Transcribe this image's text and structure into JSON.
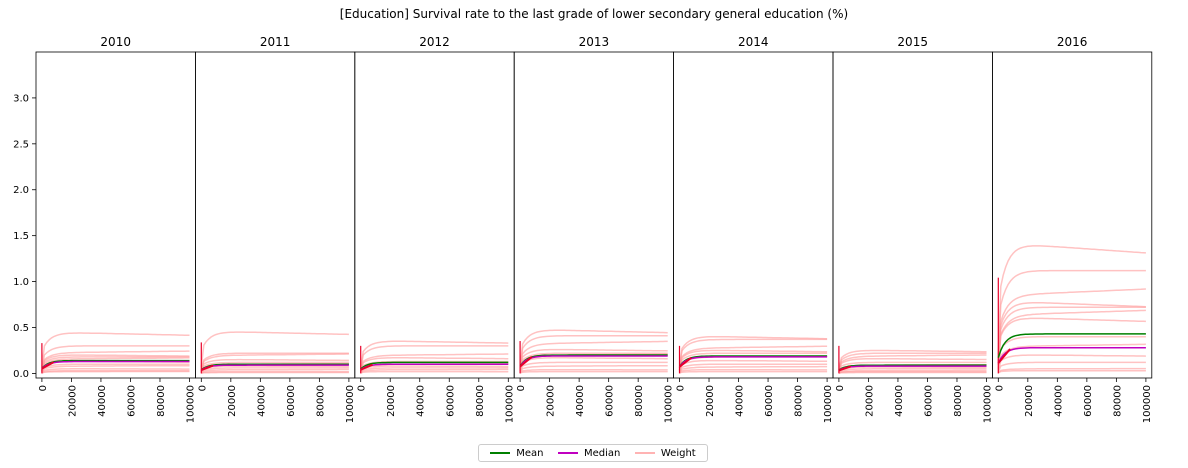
{
  "chart_data": {
    "type": "line",
    "title": "[Education] Survival rate to the last grade of lower secondary general education (%)",
    "panels": [
      {
        "title": "2010",
        "mean": 0.14,
        "median": 0.13,
        "weights": [
          0.44,
          0.3,
          0.23,
          0.2,
          0.18,
          0.16,
          0.13,
          0.1,
          0.08,
          0.05,
          0.03,
          0.02
        ]
      },
      {
        "title": "2011",
        "mean": 0.1,
        "median": 0.09,
        "weights": [
          0.45,
          0.22,
          0.2,
          0.15,
          0.12,
          0.1,
          0.08,
          0.06,
          0.04,
          0.02,
          0.01
        ]
      },
      {
        "title": "2012",
        "mean": 0.12,
        "median": 0.1,
        "weights": [
          0.35,
          0.3,
          0.2,
          0.17,
          0.13,
          0.1,
          0.08,
          0.06,
          0.04,
          0.02
        ]
      },
      {
        "title": "2013",
        "mean": 0.2,
        "median": 0.19,
        "weights": [
          0.47,
          0.41,
          0.33,
          0.26,
          0.22,
          0.2,
          0.17,
          0.12,
          0.08,
          0.04,
          0.02
        ]
      },
      {
        "title": "2014",
        "mean": 0.19,
        "median": 0.18,
        "weights": [
          0.4,
          0.37,
          0.28,
          0.25,
          0.22,
          0.18,
          0.14,
          0.1,
          0.07,
          0.04,
          0.02
        ]
      },
      {
        "title": "2015",
        "mean": 0.09,
        "median": 0.08,
        "weights": [
          0.25,
          0.22,
          0.19,
          0.16,
          0.12,
          0.09,
          0.07,
          0.05,
          0.03,
          0.02,
          0.01
        ]
      },
      {
        "title": "2016",
        "mean": 0.43,
        "median": 0.28,
        "weights": [
          1.39,
          1.12,
          0.87,
          0.77,
          0.72,
          0.65,
          0.6,
          0.4,
          0.3,
          0.2,
          0.12,
          0.05,
          0.03
        ]
      }
    ],
    "x_ticks": [
      "0",
      "20000",
      "40000",
      "60000",
      "80000",
      "100000"
    ],
    "xlim": [
      -4000,
      104000
    ],
    "y_ticks": [
      "0.0",
      "0.5",
      "1.0",
      "1.5",
      "2.0",
      "2.5",
      "3.0"
    ],
    "ylim": [
      -0.05,
      3.5
    ],
    "legend": {
      "placement": "bottom-center",
      "items": [
        {
          "label": "Mean",
          "color": "#008000"
        },
        {
          "label": "Median",
          "color": "#c000c0"
        },
        {
          "label": "Weight",
          "color": "#ffb3b3"
        }
      ]
    },
    "colors": {
      "mean": "#008000",
      "median": "#c000c0",
      "weight": "#ff9999",
      "median_start": "#e8002a"
    }
  }
}
